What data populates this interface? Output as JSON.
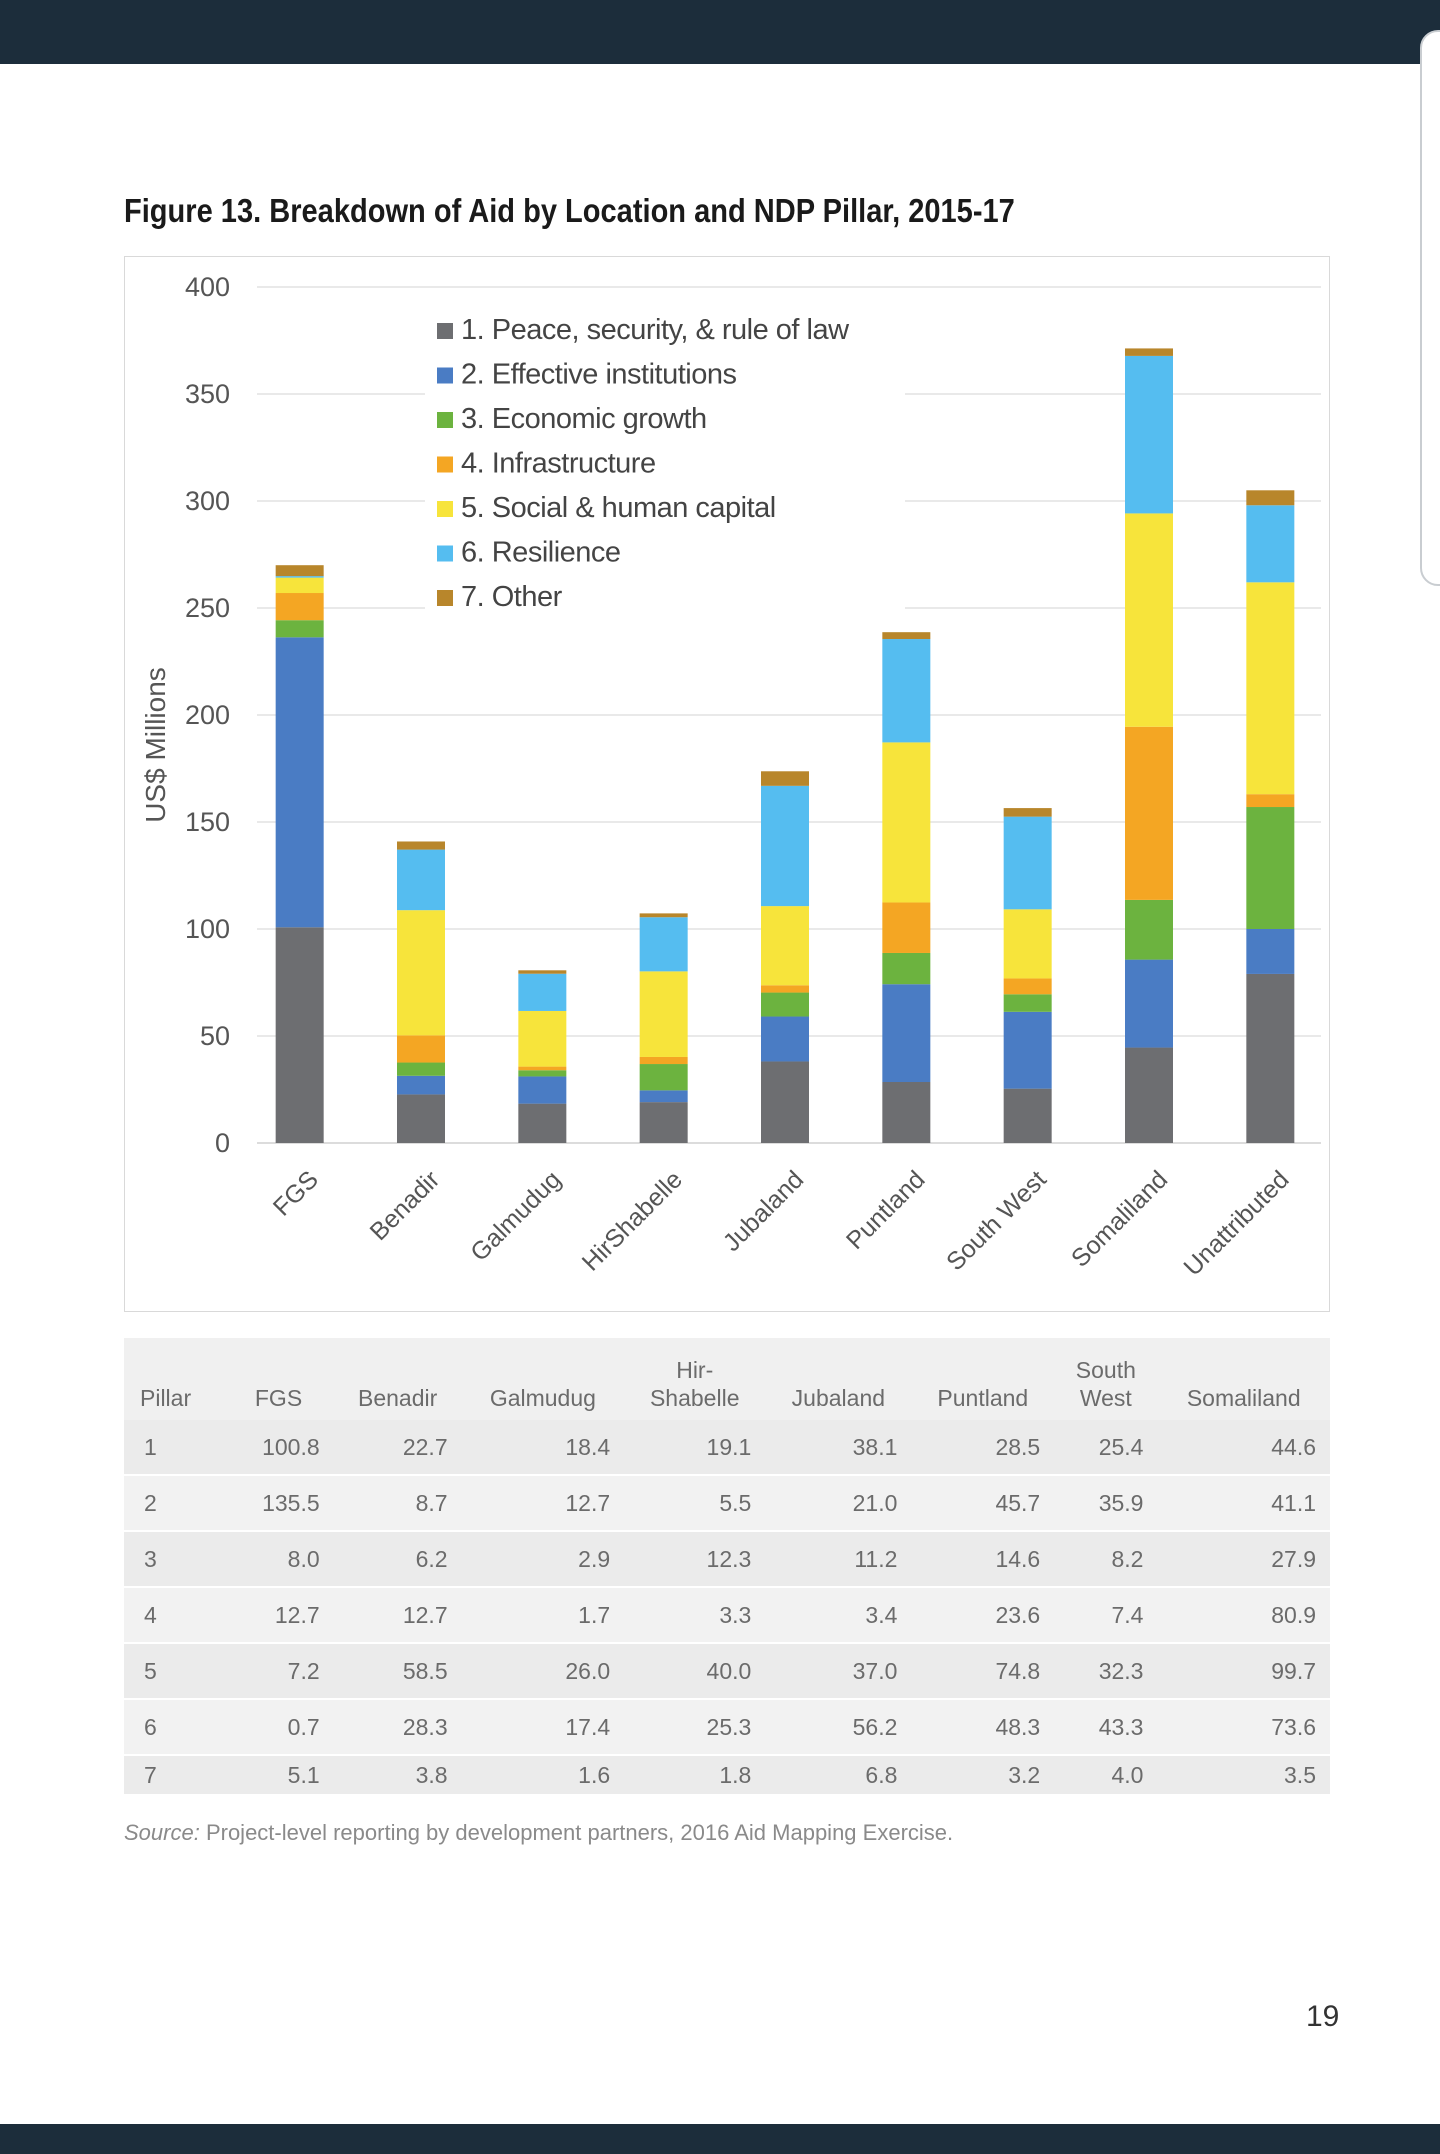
{
  "figure": {
    "title": "Figure 13. Breakdown of Aid by Location and NDP Pillar, 2015-17"
  },
  "chart_data": {
    "type": "bar",
    "stacked": true,
    "title": "Figure 13. Breakdown of Aid by Location and NDP Pillar, 2015-17",
    "xlabel": "",
    "ylabel": "US$ Millions",
    "ylim": [
      0,
      400
    ],
    "yticks": [
      0,
      50,
      100,
      150,
      200,
      250,
      300,
      350,
      400
    ],
    "grid": true,
    "legend_position": "top-center",
    "categories": [
      "FGS",
      "Benadir",
      "Galmudug",
      "HirShabelle",
      "Jubaland",
      "Puntland",
      "South West",
      "Somaliland",
      "Unattributed"
    ],
    "series": [
      {
        "name": "1. Peace, security, & rule of law",
        "color": "#6d6e71",
        "values": [
          100.8,
          22.7,
          18.4,
          19.1,
          38.1,
          28.5,
          25.4,
          44.6,
          79
        ]
      },
      {
        "name": "2. Effective institutions",
        "color": "#4a7cc4",
        "values": [
          135.5,
          8.7,
          12.7,
          5.5,
          21.0,
          45.7,
          35.9,
          41.1,
          21
        ]
      },
      {
        "name": "3. Economic growth",
        "color": "#6cb33f",
        "values": [
          8.0,
          6.2,
          2.9,
          12.3,
          11.2,
          14.6,
          8.2,
          27.9,
          57
        ]
      },
      {
        "name": "4. Infrastructure",
        "color": "#f4a623",
        "values": [
          12.7,
          12.7,
          1.7,
          3.3,
          3.4,
          23.6,
          7.4,
          80.9,
          6
        ]
      },
      {
        "name": "5. Social & human capital",
        "color": "#f7e43b",
        "values": [
          7.2,
          58.5,
          26.0,
          40.0,
          37.0,
          74.8,
          32.3,
          99.7,
          99
        ]
      },
      {
        "name": "6. Resilience",
        "color": "#55bdf0",
        "values": [
          0.7,
          28.3,
          17.4,
          25.3,
          56.2,
          48.3,
          43.3,
          73.6,
          36
        ]
      },
      {
        "name": "7. Other",
        "color": "#b8862b",
        "values": [
          5.1,
          3.8,
          1.6,
          1.8,
          6.8,
          3.2,
          4.0,
          3.5,
          7
        ]
      }
    ]
  },
  "table": {
    "headers": [
      {
        "line1": "",
        "line2": "Pillar"
      },
      {
        "line1": "",
        "line2": "FGS"
      },
      {
        "line1": "",
        "line2": "Benadir"
      },
      {
        "line1": "",
        "line2": "Galmudug"
      },
      {
        "line1": "Hir-",
        "line2": "Shabelle"
      },
      {
        "line1": "",
        "line2": "Jubaland"
      },
      {
        "line1": "",
        "line2": "Puntland"
      },
      {
        "line1": "South",
        "line2": "West"
      },
      {
        "line1": "",
        "line2": "Somaliland"
      }
    ],
    "rows": [
      [
        "1",
        "100.8",
        "22.7",
        "18.4",
        "19.1",
        "38.1",
        "28.5",
        "25.4",
        "44.6"
      ],
      [
        "2",
        "135.5",
        "8.7",
        "12.7",
        "5.5",
        "21.0",
        "45.7",
        "35.9",
        "41.1"
      ],
      [
        "3",
        "8.0",
        "6.2",
        "2.9",
        "12.3",
        "11.2",
        "14.6",
        "8.2",
        "27.9"
      ],
      [
        "4",
        "12.7",
        "12.7",
        "1.7",
        "3.3",
        "3.4",
        "23.6",
        "7.4",
        "80.9"
      ],
      [
        "5",
        "7.2",
        "58.5",
        "26.0",
        "40.0",
        "37.0",
        "74.8",
        "32.3",
        "99.7"
      ],
      [
        "6",
        "0.7",
        "28.3",
        "17.4",
        "25.3",
        "56.2",
        "48.3",
        "43.3",
        "73.6"
      ],
      [
        "7",
        "5.1",
        "3.8",
        "1.6",
        "1.8",
        "6.8",
        "3.2",
        "4.0",
        "3.5"
      ]
    ]
  },
  "source": {
    "label": "Source:",
    "text": " Project-level reporting by development partners, 2016 Aid Mapping Exercise."
  },
  "page_number": "19"
}
